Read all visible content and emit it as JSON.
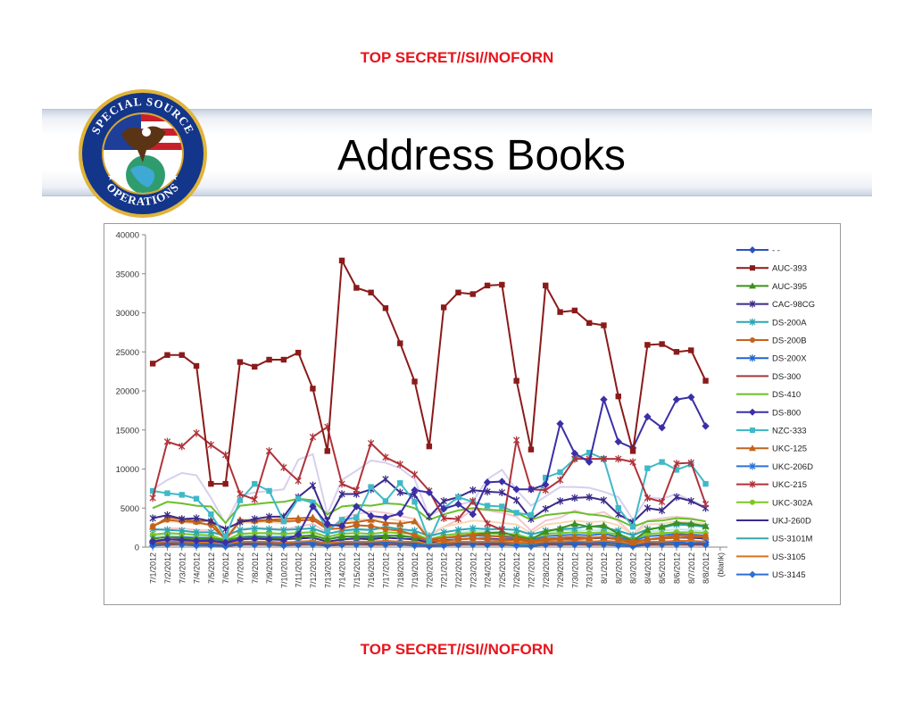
{
  "classification_top": "TOP SECRET//SI//NOFORN",
  "classification_bottom": "TOP SECRET//SI//NOFORN",
  "title": "Address Books",
  "seal": {
    "text_top": "SPECIAL SOURCE",
    "text_bottom": "OPERATIONS"
  },
  "chart_data": {
    "type": "line",
    "title": "",
    "xlabel": "",
    "ylabel": "",
    "ylim": [
      0,
      40000
    ],
    "yticks": [
      0,
      5000,
      10000,
      15000,
      20000,
      25000,
      30000,
      35000,
      40000
    ],
    "grid": false,
    "legend_position": "right",
    "categories": [
      "7/1/2012",
      "7/2/2012",
      "7/3/2012",
      "7/4/2012",
      "7/5/2012",
      "7/6/2012",
      "7/7/2012",
      "7/8/2012",
      "7/9/2012",
      "7/10/2012",
      "7/11/2012",
      "7/12/2012",
      "7/13/2012",
      "7/14/2012",
      "7/15/2012",
      "7/16/2012",
      "7/17/2012",
      "7/18/2012",
      "7/19/2012",
      "7/20/2012",
      "7/21/2012",
      "7/22/2012",
      "7/23/2012",
      "7/24/2012",
      "7/25/2012",
      "7/26/2012",
      "7/27/2012",
      "7/28/2012",
      "7/29/2012",
      "7/30/2012",
      "7/31/2012",
      "8/1/2012",
      "8/2/2012",
      "8/3/2012",
      "8/4/2012",
      "8/5/2012",
      "8/6/2012",
      "8/7/2012",
      "8/8/2012",
      "(blank)"
    ],
    "series": [
      {
        "name": "- -",
        "color": "#2a52be",
        "marker": "diamond",
        "values": [
          500,
          600,
          600,
          500,
          500,
          400,
          500,
          600,
          600,
          500,
          600,
          600,
          500,
          600,
          600,
          500,
          600,
          600,
          500,
          400,
          500,
          600,
          600,
          500,
          600,
          600,
          500,
          600,
          600,
          500,
          600,
          600,
          500,
          400,
          500,
          600,
          600,
          500,
          600,
          null
        ]
      },
      {
        "name": "AUC-393",
        "color": "#8b1a1a",
        "marker": "square",
        "values": [
          23500,
          24600,
          24600,
          23200,
          8100,
          8100,
          23700,
          23100,
          24000,
          24000,
          24900,
          20300,
          12300,
          36700,
          33200,
          32600,
          30600,
          26100,
          21200,
          12900,
          30700,
          32600,
          32400,
          33500,
          33600,
          21300,
          12500,
          33500,
          30100,
          30300,
          28700,
          28400,
          19300,
          12300,
          25900,
          26000,
          25000,
          25200,
          21300,
          null
        ]
      },
      {
        "name": "AUC-395",
        "color": "#3f8f1c",
        "marker": "triangle",
        "values": [
          1100,
          1300,
          1200,
          1000,
          1100,
          900,
          1200,
          1300,
          1200,
          1100,
          1300,
          1500,
          1000,
          1400,
          1300,
          1200,
          1400,
          1500,
          1200,
          900,
          1200,
          1400,
          1600,
          1800,
          1900,
          1400,
          1000,
          2000,
          2400,
          3000,
          2600,
          2800,
          1700,
          800,
          2200,
          2600,
          3100,
          3000,
          2700,
          null
        ]
      },
      {
        "name": "CAC-98CG",
        "color": "#3b2a8a",
        "marker": "x",
        "values": [
          3700,
          4100,
          3600,
          3700,
          3300,
          2300,
          3200,
          3600,
          3900,
          3900,
          6400,
          7900,
          3400,
          6800,
          6800,
          7400,
          8700,
          7000,
          6700,
          3900,
          5900,
          6400,
          7300,
          7100,
          7000,
          6000,
          3600,
          4900,
          5900,
          6300,
          6400,
          6000,
          4200,
          3200,
          5000,
          4700,
          6400,
          5900,
          5000,
          null
        ]
      },
      {
        "name": "DS-200A",
        "color": "#2aa5b5",
        "marker": "x",
        "values": [
          2300,
          2200,
          2100,
          1900,
          1900,
          1500,
          2200,
          2400,
          2300,
          2200,
          2300,
          2400,
          1700,
          2100,
          2300,
          2200,
          2600,
          2300,
          2100,
          1400,
          1900,
          2200,
          2400,
          2300,
          2300,
          2200,
          1600,
          2100,
          2300,
          2400,
          2700,
          2500,
          2100,
          1500,
          2300,
          2500,
          2900,
          2800,
          2600,
          null
        ]
      },
      {
        "name": "DS-200B",
        "color": "#c8611a",
        "marker": "circle",
        "values": [
          2700,
          3500,
          3300,
          3200,
          2800,
          1000,
          3300,
          3300,
          3400,
          3300,
          3400,
          3500,
          2300,
          2400,
          2800,
          2700,
          2300,
          2100,
          1500,
          800,
          800,
          1000,
          1100,
          1000,
          900,
          900,
          700,
          900,
          1000,
          1000,
          1100,
          1300,
          1000,
          700,
          1000,
          1200,
          1500,
          1500,
          1400,
          null
        ]
      },
      {
        "name": "DS-200X",
        "color": "#1f66d0",
        "marker": "x",
        "values": [
          500,
          500,
          600,
          500,
          400,
          300,
          500,
          500,
          600,
          500,
          500,
          600,
          400,
          500,
          600,
          500,
          600,
          500,
          500,
          300,
          500,
          500,
          600,
          500,
          500,
          600,
          400,
          500,
          500,
          600,
          500,
          600,
          500,
          300,
          500,
          600,
          600,
          500,
          500,
          null
        ]
      },
      {
        "name": "DS-300",
        "color": "#a33a3a",
        "marker": "none",
        "values": [
          300,
          300,
          400,
          300,
          300,
          200,
          300,
          400,
          300,
          300,
          300,
          400,
          200,
          300,
          400,
          300,
          300,
          400,
          300,
          200,
          300,
          300,
          400,
          300,
          300,
          400,
          200,
          300,
          300,
          400,
          300,
          300,
          400,
          200,
          300,
          300,
          400,
          300,
          300,
          null
        ]
      },
      {
        "name": "DS-410",
        "color": "#6abf2a",
        "marker": "none",
        "values": [
          5000,
          5800,
          5600,
          5300,
          5200,
          3100,
          5300,
          5500,
          5700,
          5800,
          6200,
          6000,
          4200,
          5200,
          5400,
          5300,
          5600,
          5500,
          5000,
          3500,
          4200,
          4700,
          5000,
          4800,
          4700,
          4400,
          3500,
          4100,
          4300,
          4500,
          4200,
          4000,
          3500,
          2600,
          3300,
          3400,
          3700,
          3600,
          3300,
          null
        ]
      },
      {
        "name": "DS-800",
        "color": "#3b2fa8",
        "marker": "diamond",
        "values": [
          700,
          1000,
          900,
          800,
          800,
          600,
          1000,
          1100,
          1000,
          900,
          1600,
          5200,
          2900,
          2700,
          5200,
          4000,
          3800,
          4300,
          7300,
          7000,
          4900,
          5500,
          4200,
          8300,
          8400,
          7400,
          7400,
          8000,
          15800,
          12000,
          10900,
          18900,
          13500,
          12700,
          16700,
          15300,
          18900,
          19200,
          15500,
          null
        ]
      },
      {
        "name": "NZC-333",
        "color": "#3fb9c7",
        "marker": "square",
        "values": [
          7200,
          6900,
          6700,
          6200,
          4200,
          1300,
          6000,
          8100,
          7200,
          3300,
          6200,
          5700,
          2100,
          3500,
          3800,
          7700,
          5900,
          8200,
          5800,
          800,
          5000,
          6400,
          5800,
          5300,
          5200,
          4400,
          4100,
          8900,
          9600,
          11300,
          12100,
          11300,
          5000,
          2600,
          10100,
          10900,
          9900,
          10600,
          8100,
          null
        ]
      },
      {
        "name": "UKC-125",
        "color": "#c0651b",
        "marker": "triangle",
        "values": [
          2600,
          3800,
          3600,
          3300,
          3400,
          900,
          3500,
          3400,
          3500,
          3600,
          3700,
          3800,
          2600,
          3000,
          3200,
          3500,
          3100,
          3000,
          3300,
          1000,
          1200,
          1400,
          1600,
          1500,
          1300,
          1200,
          800,
          1100,
          1200,
          1300,
          1200,
          1300,
          1100,
          600,
          1000,
          1100,
          1200,
          1300,
          1300,
          null
        ]
      },
      {
        "name": "UKC-206D",
        "color": "#2a73d6",
        "marker": "x",
        "values": [
          1100,
          1300,
          1300,
          1200,
          1200,
          700,
          1300,
          1400,
          1300,
          1300,
          1400,
          1500,
          1000,
          1300,
          1400,
          1400,
          1500,
          1400,
          1300,
          800,
          1200,
          1300,
          1500,
          1400,
          1400,
          1300,
          900,
          1400,
          1500,
          1600,
          1500,
          1700,
          1300,
          800,
          1400,
          1500,
          1700,
          1600,
          1500,
          null
        ]
      },
      {
        "name": "UKC-215",
        "color": "#b0333a",
        "marker": "x",
        "values": [
          6300,
          13500,
          12900,
          14600,
          13100,
          11800,
          6800,
          6100,
          12300,
          10200,
          8500,
          14100,
          15400,
          8100,
          7300,
          13300,
          11500,
          10600,
          9300,
          7200,
          3700,
          3600,
          5900,
          3000,
          2200,
          13700,
          7400,
          7300,
          8600,
          11300,
          11300,
          11300,
          11300,
          10900,
          6300,
          5800,
          10700,
          10800,
          5500,
          null
        ]
      },
      {
        "name": "UKC-302A",
        "color": "#7dc624",
        "marker": "circle",
        "values": [
          1600,
          1800,
          1700,
          1600,
          1500,
          900,
          1700,
          1800,
          1800,
          1700,
          1800,
          1900,
          1300,
          1700,
          1800,
          1700,
          1900,
          1800,
          1700,
          1000,
          1500,
          1700,
          1800,
          1800,
          1700,
          1600,
          1100,
          1700,
          1800,
          1900,
          1800,
          1900,
          1600,
          1000,
          1700,
          1800,
          1900,
          1900,
          1800,
          null
        ]
      },
      {
        "name": "UKJ-260D",
        "color": "#3b2b8f",
        "marker": "none",
        "values": [
          800,
          1000,
          1000,
          900,
          900,
          500,
          1000,
          1100,
          1000,
          1000,
          1100,
          1200,
          700,
          1000,
          1100,
          1000,
          1200,
          1100,
          1000,
          600,
          900,
          1000,
          1100,
          1100,
          1000,
          1000,
          700,
          1000,
          1100,
          1200,
          1100,
          1200,
          1000,
          600,
          1000,
          1100,
          1200,
          1200,
          1100,
          null
        ]
      },
      {
        "name": "US-3101M",
        "color": "#36a8a8",
        "marker": "none",
        "values": [
          400,
          500,
          500,
          400,
          400,
          300,
          500,
          500,
          500,
          400,
          500,
          500,
          400,
          500,
          500,
          500,
          500,
          500,
          400,
          300,
          400,
          500,
          500,
          500,
          500,
          400,
          300,
          500,
          500,
          500,
          500,
          500,
          400,
          300,
          500,
          500,
          500,
          500,
          500,
          null
        ]
      },
      {
        "name": "US-3105",
        "color": "#d9741f",
        "marker": "none",
        "values": [
          600,
          700,
          700,
          600,
          600,
          400,
          700,
          700,
          700,
          600,
          700,
          800,
          500,
          700,
          700,
          700,
          800,
          700,
          700,
          400,
          600,
          700,
          700,
          700,
          700,
          600,
          500,
          700,
          700,
          800,
          700,
          800,
          700,
          400,
          700,
          700,
          800,
          800,
          700,
          null
        ]
      },
      {
        "name": "US-3145",
        "color": "#2c6fd6",
        "marker": "diamond",
        "values": [
          200,
          300,
          300,
          200,
          200,
          100,
          300,
          300,
          300,
          200,
          300,
          300,
          200,
          300,
          300,
          300,
          300,
          300,
          200,
          100,
          200,
          300,
          300,
          300,
          300,
          200,
          100,
          300,
          300,
          300,
          300,
          300,
          200,
          100,
          300,
          300,
          300,
          300,
          300,
          null
        ]
      }
    ],
    "unlabeled_light_lines": [
      {
        "color": "#d8cfee",
        "values": [
          7400,
          8600,
          9500,
          9200,
          6300,
          3000,
          6600,
          7000,
          7200,
          7400,
          11200,
          11900,
          4200,
          8600,
          9800,
          11100,
          10800,
          10100,
          8700,
          3900,
          5100,
          5400,
          5900,
          8700,
          9900,
          7300,
          5300,
          6500,
          7700,
          7700,
          7600,
          7100,
          6400,
          3500,
          6400,
          6200,
          6800,
          6000,
          5200,
          null
        ]
      },
      {
        "color": "#f3c7cf",
        "values": [
          2100,
          2400,
          2400,
          2200,
          2200,
          1200,
          2300,
          2500,
          2400,
          2300,
          2600,
          3000,
          1800,
          3800,
          4200,
          4600,
          4400,
          4000,
          3600,
          1400,
          2600,
          3500,
          4800,
          4700,
          4400,
          3900,
          2100,
          3400,
          3800,
          4700,
          4100,
          4500,
          3300,
          1600,
          3400,
          3700,
          3900,
          3700,
          3300,
          null
        ]
      },
      {
        "color": "#bfe8ea",
        "values": [
          1400,
          1600,
          1700,
          1500,
          1500,
          800,
          1600,
          1700,
          1700,
          1600,
          1900,
          2000,
          1300,
          1900,
          2100,
          2200,
          2300,
          2100,
          1800,
          900,
          1500,
          1800,
          2100,
          2000,
          1900,
          1700,
          1100,
          1900,
          2100,
          2200,
          2100,
          2200,
          1800,
          1000,
          2000,
          2100,
          2300,
          2200,
          2000,
          null
        ]
      },
      {
        "color": "#f7d8b8",
        "values": [
          3000,
          3300,
          3200,
          3000,
          2900,
          1600,
          3100,
          3200,
          3200,
          3100,
          3400,
          3600,
          2400,
          3300,
          3500,
          3600,
          3700,
          3400,
          3100,
          1700,
          2600,
          3000,
          3400,
          3300,
          3100,
          2900,
          1800,
          2900,
          3100,
          3400,
          3200,
          3300,
          2800,
          1600,
          2900,
          3000,
          3300,
          3200,
          3000,
          null
        ]
      }
    ]
  }
}
